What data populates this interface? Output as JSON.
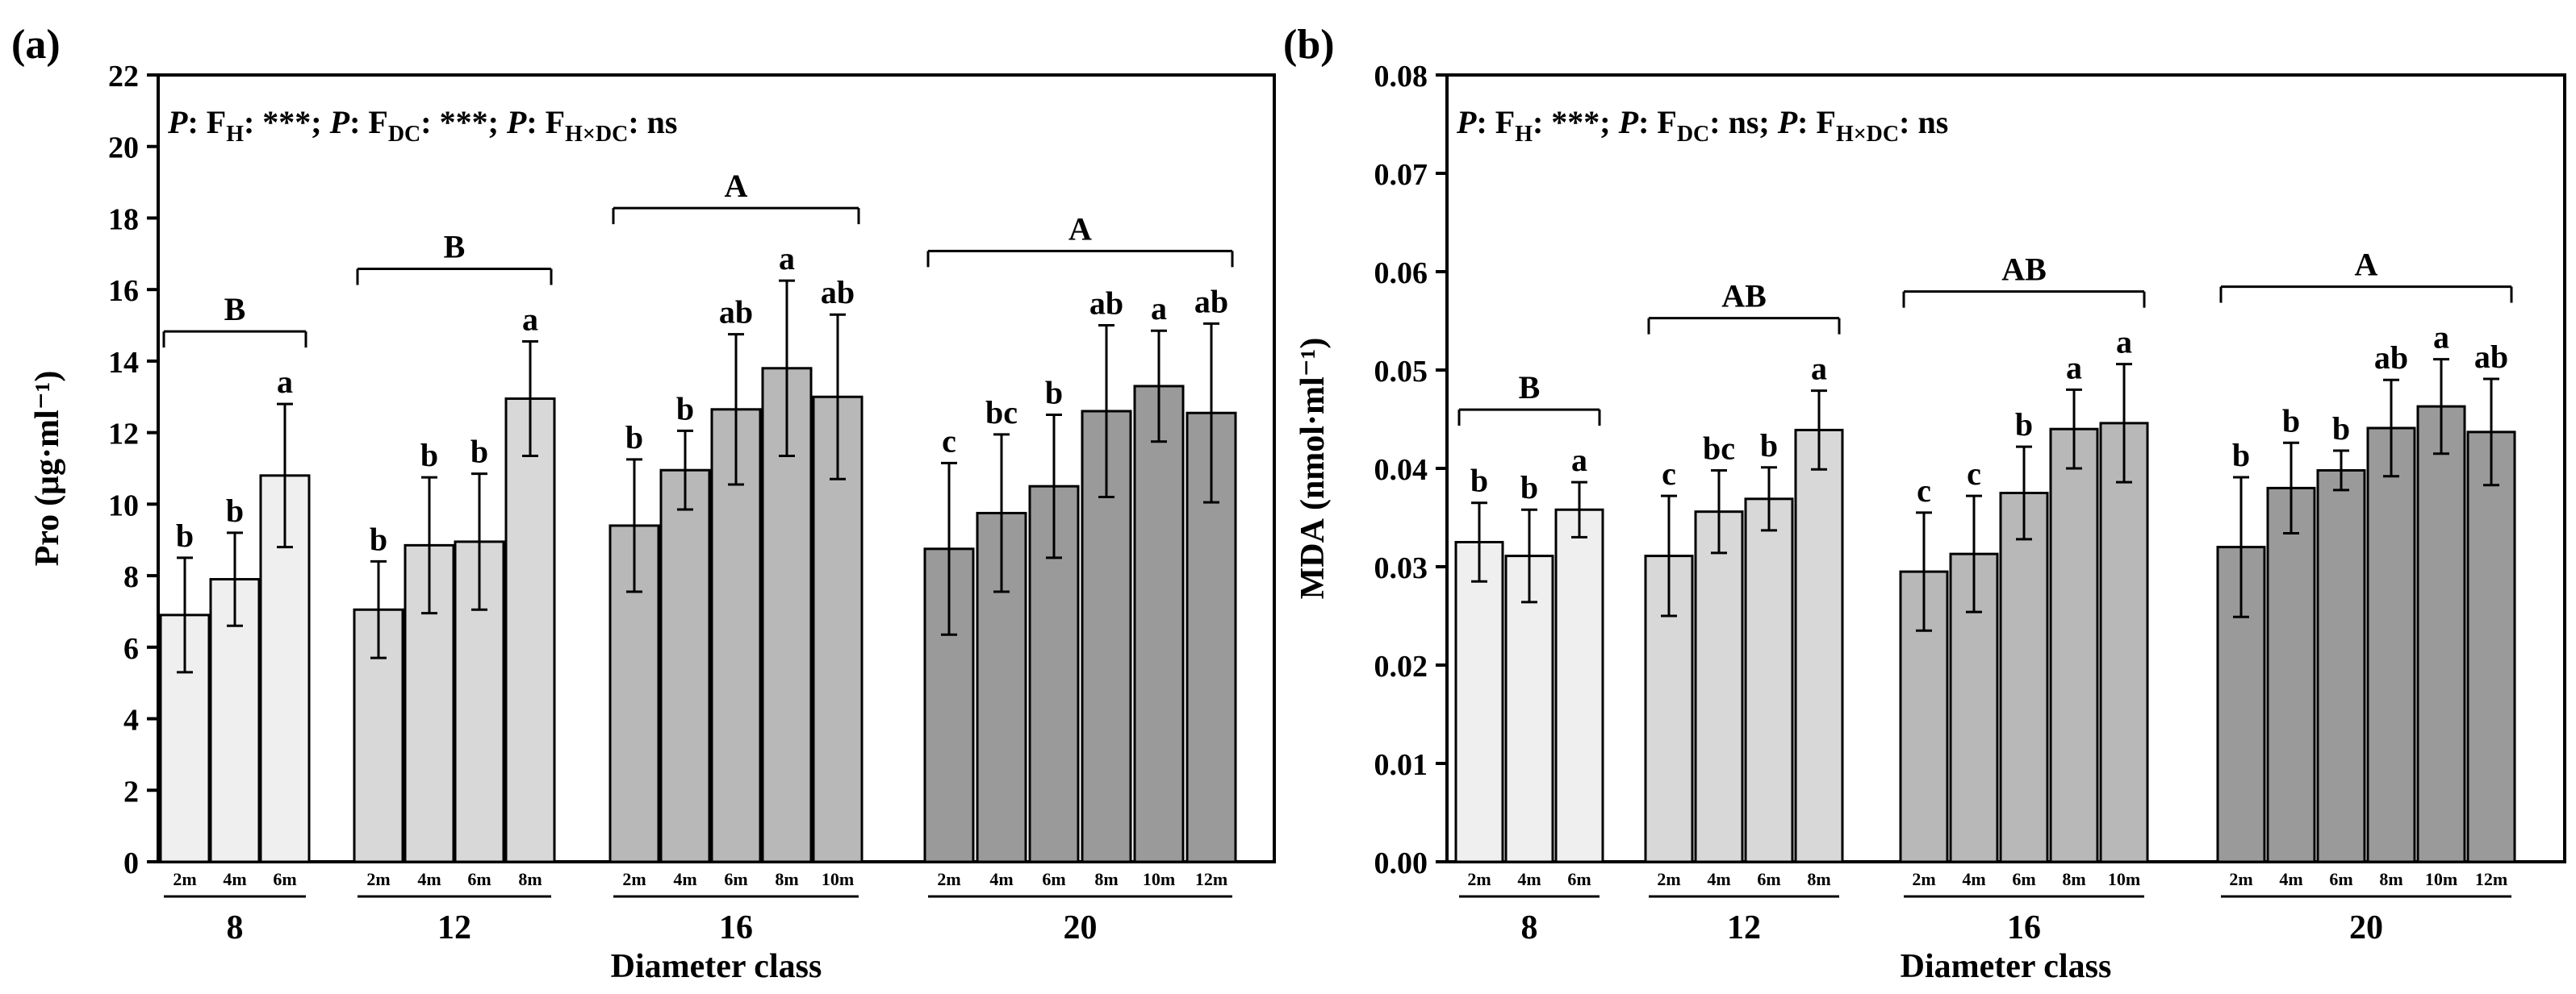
{
  "colors": {
    "d8": "#efefef",
    "d12": "#d8d8d8",
    "d16": "#b8b8b8",
    "d20": "#9a9a9a",
    "ink": "#000000"
  },
  "chart_data": [
    {
      "type": "bar",
      "panel_label": "(a)",
      "ylabel_main": "Pro",
      "ylabel_unit": "(μg·ml⁻¹)",
      "xlabel": "Diameter class",
      "ylim": [
        0,
        22
      ],
      "yticks": [
        "0",
        "2",
        "4",
        "6",
        "8",
        "10",
        "12",
        "14",
        "16",
        "18",
        "20",
        "22"
      ],
      "stats": {
        "p1": "P",
        "lbl1": ": F",
        "sub1": "H",
        "val1": ": ***; ",
        "p2": "P",
        "lbl2": ": F",
        "sub2": "DC",
        "val2": ": ***; ",
        "p3": "P",
        "lbl3": ": F",
        "sub3": "H×DC",
        "val3": ": ns"
      },
      "groups": [
        {
          "name": "8",
          "group_letter": "B",
          "color": "d8",
          "categories": [
            "2m",
            "4m",
            "6m"
          ],
          "values": [
            6.9,
            7.9,
            10.8
          ],
          "errors": [
            1.6,
            1.3,
            2.0
          ],
          "letters": [
            "b",
            "b",
            "a"
          ]
        },
        {
          "name": "12",
          "group_letter": "B",
          "color": "d12",
          "categories": [
            "2m",
            "4m",
            "6m",
            "8m"
          ],
          "values": [
            7.05,
            8.85,
            8.95,
            12.95
          ],
          "errors": [
            1.35,
            1.9,
            1.9,
            1.6
          ],
          "letters": [
            "b",
            "b",
            "b",
            "a"
          ]
        },
        {
          "name": "16",
          "group_letter": "A",
          "color": "d16",
          "categories": [
            "2m",
            "4m",
            "6m",
            "8m",
            "10m"
          ],
          "values": [
            9.4,
            10.95,
            12.65,
            13.8,
            13.0
          ],
          "errors": [
            1.85,
            1.1,
            2.1,
            2.45,
            2.3
          ],
          "letters": [
            "b",
            "b",
            "ab",
            "a",
            "ab"
          ]
        },
        {
          "name": "20",
          "group_letter": "A",
          "color": "d20",
          "categories": [
            "2m",
            "4m",
            "6m",
            "8m",
            "10m",
            "12m"
          ],
          "values": [
            8.75,
            9.75,
            10.5,
            12.6,
            13.3,
            12.55
          ],
          "errors": [
            2.4,
            2.2,
            2.0,
            2.4,
            1.55,
            2.5
          ],
          "letters": [
            "c",
            "bc",
            "b",
            "ab",
            "a",
            "ab"
          ]
        }
      ]
    },
    {
      "type": "bar",
      "panel_label": "(b)",
      "ylabel_main": "MDA",
      "ylabel_unit": "(nmol·ml⁻¹)",
      "xlabel": "Diameter class",
      "ylim": [
        0,
        0.08
      ],
      "yticks": [
        "0.00",
        "0.01",
        "0.02",
        "0.03",
        "0.04",
        "0.05",
        "0.06",
        "0.07",
        "0.08"
      ],
      "stats": {
        "p1": "P",
        "lbl1": ": F",
        "sub1": "H",
        "val1": ": ***; ",
        "p2": "P",
        "lbl2": ": F",
        "sub2": "DC",
        "val2": ": ns; ",
        "p3": "P",
        "lbl3": ": F",
        "sub3": "H×DC",
        "val3": ": ns"
      },
      "groups": [
        {
          "name": "8",
          "group_letter": "B",
          "color": "d8",
          "categories": [
            "2m",
            "4m",
            "6m"
          ],
          "values": [
            0.0325,
            0.0311,
            0.0358
          ],
          "errors": [
            0.004,
            0.0047,
            0.0028
          ],
          "letters": [
            "b",
            "b",
            "a"
          ]
        },
        {
          "name": "12",
          "group_letter": "AB",
          "color": "d12",
          "categories": [
            "2m",
            "4m",
            "6m",
            "8m"
          ],
          "values": [
            0.0311,
            0.0356,
            0.0369,
            0.0439
          ],
          "errors": [
            0.0061,
            0.0042,
            0.0032,
            0.004
          ],
          "letters": [
            "c",
            "bc",
            "b",
            "a"
          ]
        },
        {
          "name": "16",
          "group_letter": "AB",
          "color": "d16",
          "categories": [
            "2m",
            "4m",
            "6m",
            "8m",
            "10m"
          ],
          "values": [
            0.0295,
            0.0313,
            0.0375,
            0.044,
            0.0446
          ],
          "errors": [
            0.006,
            0.0059,
            0.0047,
            0.004,
            0.006
          ],
          "letters": [
            "c",
            "c",
            "b",
            "a",
            "a"
          ]
        },
        {
          "name": "20",
          "group_letter": "A",
          "color": "d20",
          "categories": [
            "2m",
            "4m",
            "6m",
            "8m",
            "10m",
            "12m"
          ],
          "values": [
            0.032,
            0.038,
            0.0398,
            0.0441,
            0.0463,
            0.0437
          ],
          "errors": [
            0.0071,
            0.0046,
            0.002,
            0.0049,
            0.0048,
            0.0054
          ],
          "letters": [
            "b",
            "b",
            "b",
            "ab",
            "a",
            "ab"
          ]
        }
      ]
    }
  ]
}
